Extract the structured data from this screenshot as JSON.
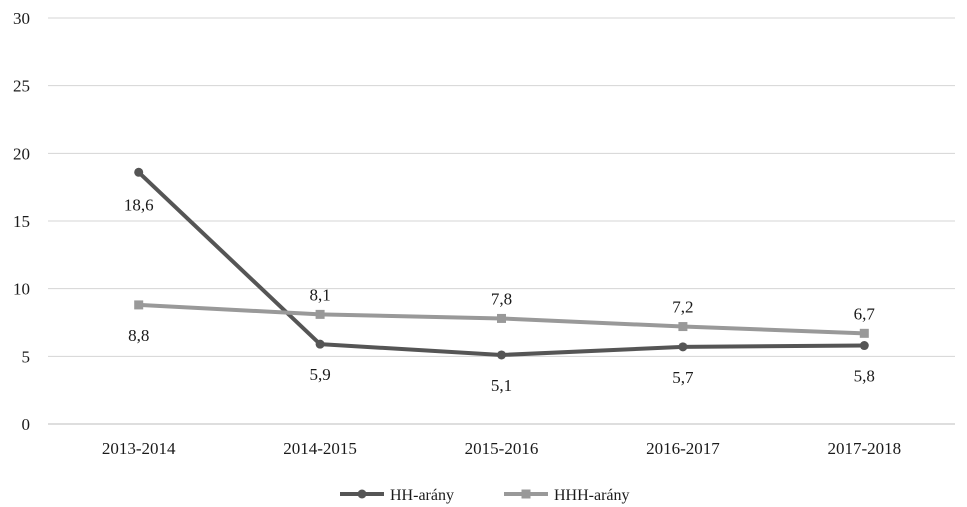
{
  "chart_data": {
    "type": "line",
    "categories": [
      "2013-2014",
      "2014-2015",
      "2015-2016",
      "2016-2017",
      "2017-2018"
    ],
    "series": [
      {
        "name": "HH-arány",
        "values": [
          18.6,
          5.9,
          5.1,
          5.7,
          5.8
        ],
        "labels": [
          "18,6",
          "5,9",
          "5,1",
          "5,7",
          "5,8"
        ],
        "color": "#555555",
        "marker": "circle"
      },
      {
        "name": "HHH-arány",
        "values": [
          8.8,
          8.1,
          7.8,
          7.2,
          6.7
        ],
        "labels": [
          "8,8",
          "8,1",
          "7,8",
          "7,2",
          "6,7"
        ],
        "color": "#999999",
        "marker": "square"
      }
    ],
    "title": "",
    "xlabel": "",
    "ylabel": "",
    "ylim": [
      0,
      30
    ],
    "yticks": [
      0,
      5,
      10,
      15,
      20,
      25,
      30
    ],
    "grid": true,
    "legend": "bottom"
  }
}
